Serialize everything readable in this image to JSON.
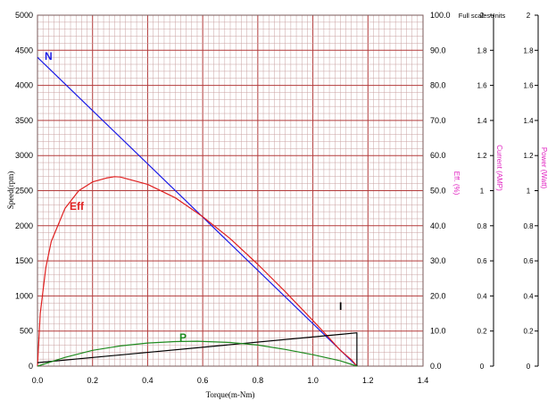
{
  "chart_data": {
    "type": "line",
    "xlabel": "Torque(m-Nm)",
    "ylabel": "Speed(rpm)",
    "xlim": [
      0,
      1.4
    ],
    "ylim": [
      0,
      5000
    ],
    "x_ticks": [
      "0.0",
      "0.2",
      "0.4",
      "0.6",
      "0.8",
      "1.0",
      "1.2",
      "1.4"
    ],
    "y_ticks": [
      "0",
      "500",
      "1000",
      "1500",
      "2000",
      "2500",
      "3000",
      "3500",
      "4000",
      "4500",
      "5000"
    ],
    "eff_axis": {
      "label": "Eff. (%)",
      "range": [
        0,
        100
      ],
      "ticks": [
        "0.0",
        "10.0",
        "20.0",
        "30.0",
        "40.0",
        "50.0",
        "60.0",
        "70.0",
        "80.0",
        "90.0",
        "100.0"
      ]
    },
    "current_axis": {
      "label": "Current (AMP)",
      "header": "Full scalesUnits",
      "range": [
        0,
        2
      ],
      "ticks": [
        "0",
        "0.2",
        "0.4",
        "0.6",
        "0.8",
        "1",
        "1.2",
        "1.4",
        "1.6",
        "1.8",
        "2"
      ]
    },
    "power_axis": {
      "label": "Power (Watt)",
      "range": [
        0,
        2
      ],
      "ticks": [
        "0",
        "0.2",
        "0.4",
        "0.6",
        "0.8",
        "1",
        "1.2",
        "1.4",
        "1.6",
        "1.8",
        "2"
      ]
    },
    "grid": true,
    "series": [
      {
        "name": "N",
        "axis": "speed",
        "color": "#1a1ae6",
        "points": [
          [
            0,
            4400
          ],
          [
            1.16,
            0
          ]
        ]
      },
      {
        "name": "Eff",
        "axis": "eff",
        "color": "#e02020",
        "points": [
          [
            0.0,
            0.0
          ],
          [
            0.01,
            15.0
          ],
          [
            0.03,
            28.0
          ],
          [
            0.05,
            35.5
          ],
          [
            0.1,
            45.0
          ],
          [
            0.15,
            50.0
          ],
          [
            0.2,
            52.5
          ],
          [
            0.25,
            53.6
          ],
          [
            0.28,
            54.0
          ],
          [
            0.3,
            53.9
          ],
          [
            0.4,
            51.8
          ],
          [
            0.5,
            48.0
          ],
          [
            0.6,
            42.6
          ],
          [
            0.7,
            36.3
          ],
          [
            0.8,
            29.0
          ],
          [
            0.9,
            21.2
          ],
          [
            1.0,
            13.0
          ],
          [
            1.05,
            8.8
          ],
          [
            1.1,
            4.5
          ],
          [
            1.14,
            1.8
          ],
          [
            1.16,
            0.0
          ]
        ]
      },
      {
        "name": "I",
        "axis": "current",
        "color": "#000000",
        "points": [
          [
            0,
            0.02
          ],
          [
            1.16,
            0.19
          ],
          [
            1.16,
            0
          ]
        ]
      },
      {
        "name": "P",
        "axis": "power",
        "color": "#1f8a1f",
        "points": [
          [
            0.0,
            0.0
          ],
          [
            0.1,
            0.05
          ],
          [
            0.2,
            0.09
          ],
          [
            0.3,
            0.115
          ],
          [
            0.4,
            0.132
          ],
          [
            0.5,
            0.14
          ],
          [
            0.58,
            0.142
          ],
          [
            0.7,
            0.135
          ],
          [
            0.8,
            0.12
          ],
          [
            0.9,
            0.095
          ],
          [
            1.0,
            0.065
          ],
          [
            1.1,
            0.03
          ],
          [
            1.16,
            0.0
          ]
        ]
      }
    ]
  }
}
